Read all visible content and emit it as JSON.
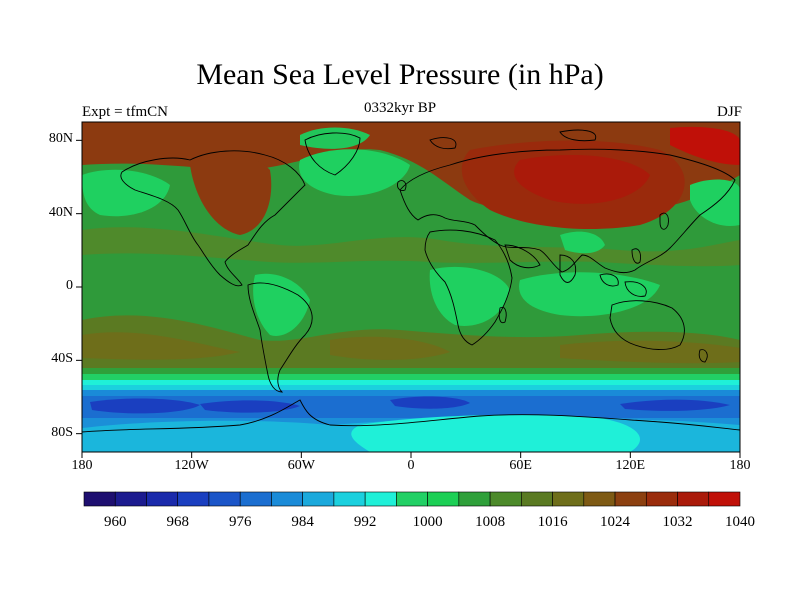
{
  "title": "Mean Sea Level Pressure (in hPa)",
  "subtitle_center": "0332kyr BP",
  "subtitle_left": "Expt = tfmCN",
  "subtitle_right": "DJF",
  "map": {
    "type": "filled-contour",
    "lat_ticks": [
      "80N",
      "40N",
      "0",
      "40S",
      "80S"
    ],
    "lon_ticks": [
      "180",
      "120W",
      "60W",
      "0",
      "60E",
      "120E",
      "180"
    ],
    "lat_values": [
      80,
      40,
      0,
      -40,
      -80
    ],
    "lon_values": [
      -180,
      -120,
      -60,
      0,
      60,
      120,
      180
    ]
  },
  "colorbar": {
    "colors": [
      "#1e0f70",
      "#1c1b8f",
      "#1a2aab",
      "#1a3fc0",
      "#1b55c8",
      "#1b6ed0",
      "#1a8bd8",
      "#1ba9dc",
      "#1bd0de",
      "#1ff0d8",
      "#22d065",
      "#1ccf55",
      "#2fa03a",
      "#4c8a2a",
      "#5a7a22",
      "#6e6e1a",
      "#7e5a14",
      "#8c4010",
      "#9a2c0c",
      "#aa1a0a",
      "#c01008"
    ],
    "labels": [
      "960",
      "968",
      "976",
      "984",
      "992",
      "1000",
      "1008",
      "1016",
      "1024",
      "1032",
      "1040"
    ]
  }
}
